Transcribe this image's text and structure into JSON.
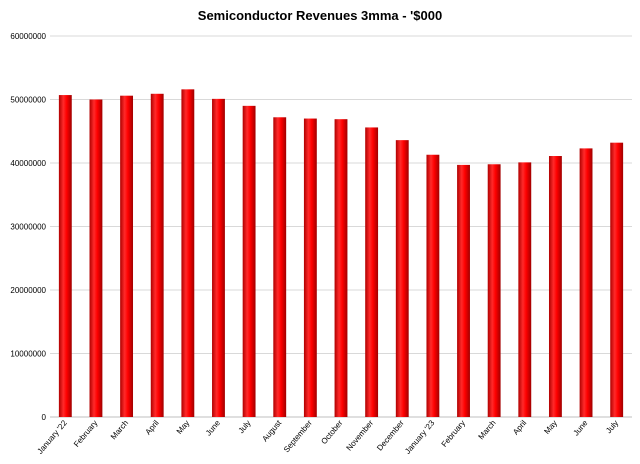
{
  "chart_data": {
    "type": "bar",
    "title": "Semiconductor Revenues  3mma - '$000",
    "xlabel": "",
    "ylabel": "",
    "categories": [
      "January '22",
      "February",
      "March",
      "April",
      "May",
      "June",
      "July",
      "August",
      "September",
      "October",
      "November",
      "December",
      "January '23",
      "February",
      "March",
      "April",
      "May",
      "June",
      "July"
    ],
    "values": [
      50700000,
      50000000,
      50600000,
      50900000,
      51600000,
      50100000,
      49000000,
      47200000,
      47000000,
      46900000,
      45600000,
      43600000,
      41300000,
      39700000,
      39800000,
      40100000,
      41100000,
      42300000,
      43200000
    ],
    "ylim": [
      0,
      60000000
    ],
    "yticks": [
      "0",
      "10000000",
      "20000000",
      "30000000",
      "40000000",
      "50000000",
      "60000000"
    ],
    "grid": true,
    "bar_color": "#ff0000"
  }
}
